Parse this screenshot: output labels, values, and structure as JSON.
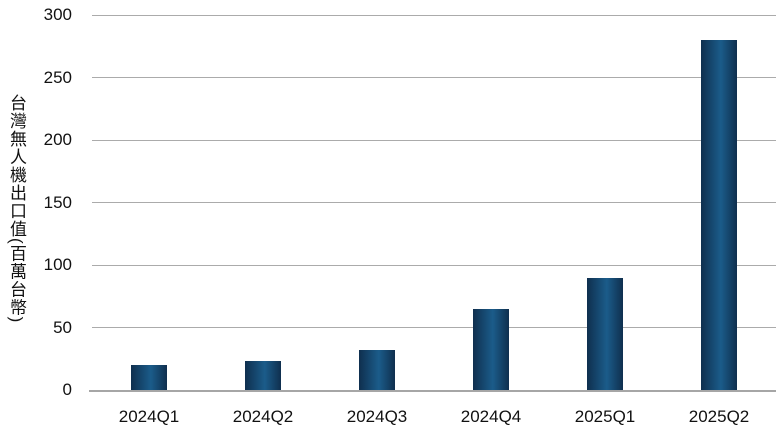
{
  "chart_data": {
    "type": "bar",
    "title": "",
    "xlabel": "",
    "ylabel": "台灣無人機出口值(百萬台幣)",
    "categories": [
      "2024Q1",
      "2024Q2",
      "2024Q3",
      "2024Q4",
      "2025Q1",
      "2025Q2"
    ],
    "values": [
      20,
      23,
      32,
      65,
      90,
      280
    ],
    "ylim": [
      0,
      300
    ],
    "yticks": [
      0,
      50,
      100,
      150,
      200,
      250,
      300
    ],
    "grid": true,
    "legend": "none",
    "colors": {
      "bar_edge": "#0f2f4e",
      "bar_mid": "#1b5c8a",
      "gridline": "#ababab",
      "axis_line": "#a6a6a6",
      "text": "#111111",
      "background": "#ffffff"
    }
  }
}
